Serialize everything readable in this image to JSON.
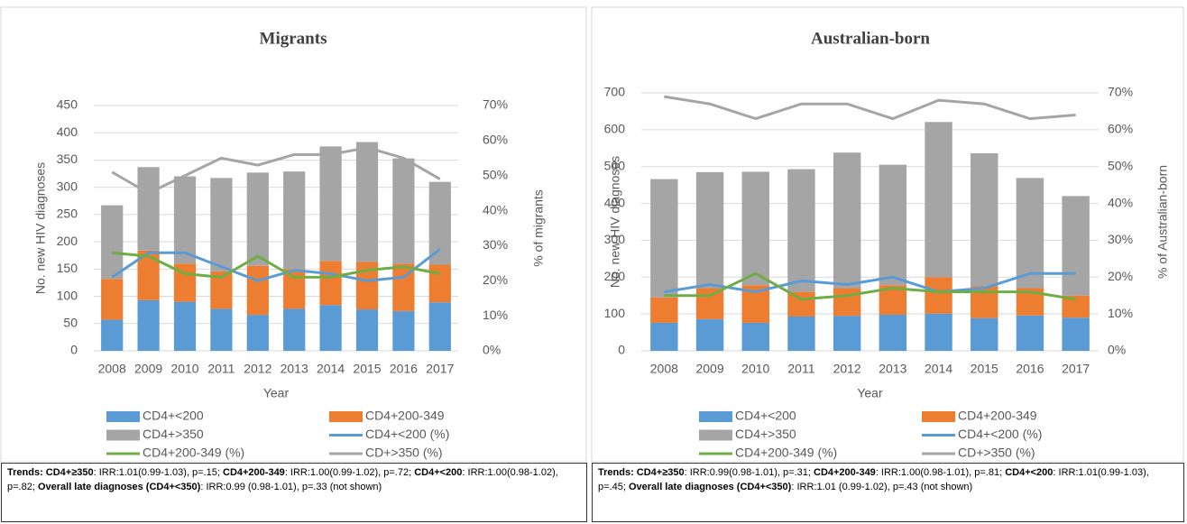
{
  "chart_data": [
    {
      "type": "bar",
      "title": "Migrants",
      "x_label": "Year",
      "y_label": "No. new HIV diagnoses",
      "y2_label": "% of migrants",
      "categories": [
        "2008",
        "2009",
        "2010",
        "2011",
        "2012",
        "2013",
        "2014",
        "2015",
        "2016",
        "2017"
      ],
      "ylim": [
        0,
        450
      ],
      "yticks": [
        0,
        50,
        100,
        150,
        200,
        250,
        300,
        350,
        400,
        450
      ],
      "y2lim": [
        0,
        70
      ],
      "y2ticks": [
        {
          "value": 0,
          "label": "0%"
        },
        {
          "value": 10,
          "label": "10%"
        },
        {
          "value": 20,
          "label": "20%"
        },
        {
          "value": 30,
          "label": "30%"
        },
        {
          "value": 40,
          "label": "40%"
        },
        {
          "value": 50,
          "label": "50%"
        },
        {
          "value": 60,
          "label": "60%"
        },
        {
          "value": 70,
          "label": "70%"
        }
      ],
      "grid": true,
      "stacked": true,
      "series": [
        {
          "name": "CD4+<200",
          "type": "bar",
          "color": "#5b9bd5",
          "values": [
            57,
            93,
            90,
            77,
            66,
            77,
            84,
            76,
            73,
            89
          ]
        },
        {
          "name": "CD4+200-349",
          "type": "bar",
          "color": "#ed7d31",
          "values": [
            75,
            91,
            70,
            69,
            90,
            73,
            81,
            87,
            87,
            69
          ]
        },
        {
          "name": "CD4+>350",
          "type": "bar",
          "color": "#a5a5a5",
          "values": [
            135,
            153,
            160,
            171,
            171,
            179,
            210,
            220,
            193,
            152
          ]
        },
        {
          "name": "CD4+<200 (%)",
          "type": "line",
          "axis": "y2",
          "color": "#5b9bd5",
          "values": [
            21,
            28,
            28,
            24,
            20,
            23,
            22,
            20,
            21,
            29
          ]
        },
        {
          "name": "CD4+200-349 (%)",
          "type": "line",
          "axis": "y2",
          "color": "#70ad47",
          "values": [
            28,
            27,
            22,
            21,
            27,
            21,
            21,
            23,
            24,
            22
          ]
        },
        {
          "name": "CD+>350 (%)",
          "type": "line",
          "axis": "y2",
          "color": "#a5a5a5",
          "values": [
            51,
            45,
            50,
            55,
            53,
            56,
            56,
            58,
            55,
            49
          ]
        }
      ],
      "note": [
        {
          "text": "Trends: CD4+≥350",
          "bold": true
        },
        {
          "text": ": IRR:1.01(0.99-1.03), p=.15; ",
          "bold": false
        },
        {
          "text": "CD4+200-349",
          "bold": true
        },
        {
          "text": ": IRR:1.00(0.99-1.02), p=.72; ",
          "bold": false
        },
        {
          "text": "CD4+<200",
          "bold": true
        },
        {
          "text": ": IRR:1.00(0.98-1.02), p=.82; ",
          "bold": false
        },
        {
          "text": "Overall late diagnoses (CD4+<350)",
          "bold": true
        },
        {
          "text": ": IRR:0.99 (0.98-1.01), p=.33 (not shown)",
          "bold": false
        }
      ]
    },
    {
      "type": "bar",
      "title": "Australian-born",
      "x_label": "Year",
      "y_label": "No. new HIV diagnoses",
      "y2_label": "% of Australian-born",
      "categories": [
        "2008",
        "2009",
        "2010",
        "2011",
        "2012",
        "2013",
        "2014",
        "2015",
        "2016",
        "2017"
      ],
      "ylim": [
        0,
        700
      ],
      "yticks": [
        0,
        100,
        200,
        300,
        400,
        500,
        600,
        700
      ],
      "y2lim": [
        0,
        70
      ],
      "y2ticks": [
        {
          "value": 0,
          "label": "0%"
        },
        {
          "value": 10,
          "label": "10%"
        },
        {
          "value": 20,
          "label": "20%"
        },
        {
          "value": 30,
          "label": "30%"
        },
        {
          "value": 40,
          "label": "40%"
        },
        {
          "value": 50,
          "label": "50%"
        },
        {
          "value": 60,
          "label": "60%"
        },
        {
          "value": 70,
          "label": "70%"
        }
      ],
      "grid": true,
      "stacked": true,
      "series": [
        {
          "name": "CD4+<200",
          "type": "bar",
          "color": "#5b9bd5",
          "values": [
            76,
            86,
            76,
            93,
            95,
            98,
            101,
            89,
            96,
            90
          ]
        },
        {
          "name": "CD4+200-349",
          "type": "bar",
          "color": "#ed7d31",
          "values": [
            69,
            84,
            102,
            67,
            75,
            80,
            99,
            86,
            74,
            60
          ]
        },
        {
          "name": "CD4+>350",
          "type": "bar",
          "color": "#a5a5a5",
          "values": [
            321,
            315,
            308,
            333,
            368,
            327,
            421,
            361,
            299,
            270
          ]
        },
        {
          "name": "CD4+<200 (%)",
          "type": "line",
          "axis": "y2",
          "color": "#5b9bd5",
          "values": [
            16,
            18,
            16,
            19,
            18,
            20,
            16,
            17,
            21,
            21
          ]
        },
        {
          "name": "CD4+200-349 (%)",
          "type": "line",
          "axis": "y2",
          "color": "#70ad47",
          "values": [
            15,
            15,
            21,
            14,
            15,
            17,
            16,
            16,
            16,
            14
          ]
        },
        {
          "name": "CD+>350 (%)",
          "type": "line",
          "axis": "y2",
          "color": "#a5a5a5",
          "values": [
            69,
            67,
            63,
            67,
            67,
            63,
            68,
            67,
            63,
            64
          ]
        }
      ],
      "note": [
        {
          "text": "Trends: CD4+≥350",
          "bold": true
        },
        {
          "text": ": IRR:0.99(0.98-1.01), p=.31; ",
          "bold": false
        },
        {
          "text": "CD4+200-349",
          "bold": true
        },
        {
          "text": ": IRR:1.00(0.98-1.01), p=.81; ",
          "bold": false
        },
        {
          "text": "CD4+<200",
          "bold": true
        },
        {
          "text": ": IRR:1.01(0.99-1.03), p=.45; ",
          "bold": false
        },
        {
          "text": "Overall late diagnoses (CD4+<350)",
          "bold": true
        },
        {
          "text": ": IRR:1.01 (0.99-1.02), p=.43 (not shown)",
          "bold": false
        }
      ]
    }
  ]
}
